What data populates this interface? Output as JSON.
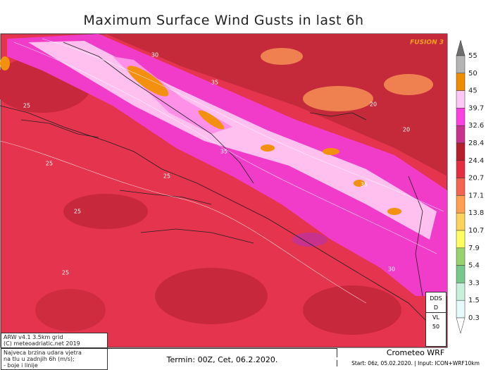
{
  "header": {
    "title": "Maximum Surface Wind Gusts in last 6h"
  },
  "map": {
    "logo": "FUSION 3",
    "contour_labels": [
      "30",
      "35",
      "35",
      "25",
      "25",
      "25",
      "25",
      "35",
      "30",
      "20",
      "20",
      "25"
    ]
  },
  "legend": {
    "levels": [
      {
        "label": 55,
        "color": "#6e6e6e"
      },
      {
        "label": 50,
        "color": "#b4b4b4"
      },
      {
        "label": 45,
        "color": "#f08c00"
      },
      {
        "label": 39.7,
        "color": "#ffc8f4"
      },
      {
        "label": 32.6,
        "color": "#ff40e0"
      },
      {
        "label": 28.4,
        "color": "#c8328c"
      },
      {
        "label": 24.4,
        "color": "#b41e2d"
      },
      {
        "label": 20.7,
        "color": "#e42e42"
      },
      {
        "label": 17.1,
        "color": "#f46450"
      },
      {
        "label": 13.8,
        "color": "#ffa050"
      },
      {
        "label": 10.7,
        "color": "#ffd25a"
      },
      {
        "label": 7.9,
        "color": "#ffff60"
      },
      {
        "label": 5.4,
        "color": "#96d26e"
      },
      {
        "label": 3.3,
        "color": "#78c88c"
      },
      {
        "label": 1.5,
        "color": "#c8f0dc"
      },
      {
        "label": 0.3,
        "color": "#e6fafa"
      }
    ]
  },
  "station_box": {
    "lines": [
      "DDS",
      "D",
      "VL",
      "50"
    ]
  },
  "info_box": {
    "lines": [
      "ARW v4.1 3.5km grid",
      "(C) meteoadriatic.net 2019"
    ]
  },
  "description": {
    "lines": [
      "Najveca brzina udara vjetra",
      "na tlu u zadnjih 6h (m/s);",
      "- boje i linije"
    ]
  },
  "footer": {
    "termin": "Termin: 00Z, Cet, 06.2.2020.",
    "model": "Crometeo WRF",
    "run": "Start: 06z, 05.02.2020. | Input: ICON+WRF10km"
  }
}
